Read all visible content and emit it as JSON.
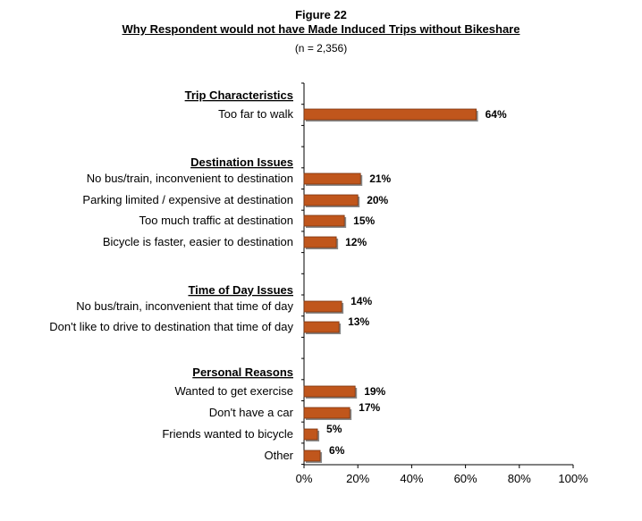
{
  "figure": {
    "label": "Figure 22",
    "title": "Why Respondent would not have Made Induced Trips without Bikeshare",
    "subtitle": "(n = 2,356)"
  },
  "chart_data": {
    "type": "bar",
    "orientation": "horizontal",
    "bar_color": "#C0561C",
    "xlim": [
      0,
      100
    ],
    "x_ticks": [
      0,
      20,
      40,
      60,
      80,
      100
    ],
    "x_tick_labels": [
      "0%",
      "20%",
      "40%",
      "60%",
      "80%",
      "100%"
    ],
    "groups": [
      {
        "heading": "Trip Characteristics",
        "items": [
          {
            "label": "Too far to walk",
            "value": 64,
            "value_label": "64%"
          }
        ]
      },
      {
        "heading": "Destination Issues",
        "items": [
          {
            "label": "No bus/train, inconvenient to destination",
            "value": 21,
            "value_label": "21%"
          },
          {
            "label": "Parking limited / expensive at destination",
            "value": 20,
            "value_label": "20%"
          },
          {
            "label": "Too much traffic at destination",
            "value": 15,
            "value_label": "15%"
          },
          {
            "label": "Bicycle is faster, easier to destination",
            "value": 12,
            "value_label": "12%"
          }
        ]
      },
      {
        "heading": "Time of Day Issues",
        "items": [
          {
            "label": "No bus/train, inconvenient that time of day",
            "value": 14,
            "value_label": "14%"
          },
          {
            "label": "Don't like to drive to destination that time of day",
            "value": 13,
            "value_label": "13%"
          }
        ]
      },
      {
        "heading": "Personal Reasons",
        "items": [
          {
            "label": "Wanted to get exercise",
            "value": 19,
            "value_label": "19%"
          },
          {
            "label": "Don't have a car",
            "value": 17,
            "value_label": "17%"
          },
          {
            "label": "Friends wanted to bicycle",
            "value": 5,
            "value_label": "5%"
          },
          {
            "label": "Other",
            "value": 6,
            "value_label": "6%"
          }
        ]
      }
    ]
  }
}
